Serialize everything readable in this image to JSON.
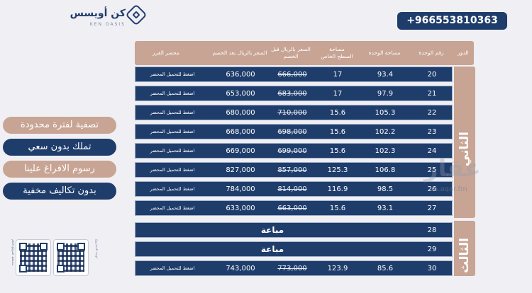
{
  "brand": {
    "name": "كن أويسس",
    "sub": "KEN OASIS"
  },
  "phone": "+966553810363",
  "promos": [
    "تصفية لفترة محدودة",
    "تملك بدون سعي",
    "رسوم الافراغ علينا",
    "بدون تكاليف مخفية"
  ],
  "qr_captions": [
    "مخطط الموقع العام",
    "لوحة المشروع"
  ],
  "headers": {
    "floor": "الدور",
    "unit_no": "رقم الوحدة",
    "unit_area": "مساحة الوحدة",
    "private_roof": "مساحة السطح الخاص",
    "price_before": "السعر بالريال قبل الخصم",
    "price_after": "السعر بالريال بعد الخصم",
    "sort_report": "محضر الفرز"
  },
  "floors": [
    {
      "label": "الثاني"
    },
    {
      "label": "الثالث"
    }
  ],
  "sold_label": "مباعة",
  "download_label": "اضغط للتحميل المحضر",
  "rows": [
    {
      "unit": "20",
      "area": "93.4",
      "roof": "17",
      "before": "666,000",
      "after": "636,000"
    },
    {
      "unit": "21",
      "area": "97.9",
      "roof": "17",
      "before": "683,000",
      "after": "653,000"
    },
    {
      "unit": "22",
      "area": "105.3",
      "roof": "15.6",
      "before": "710,000",
      "after": "680,000"
    },
    {
      "unit": "23",
      "area": "102.2",
      "roof": "15.6",
      "before": "698,000",
      "after": "668,000"
    },
    {
      "unit": "24",
      "area": "102.3",
      "roof": "15.6",
      "before": "699,000",
      "after": "669,000"
    },
    {
      "unit": "25",
      "area": "106.8",
      "roof": "125.3",
      "before": "857,000",
      "after": "827,000"
    },
    {
      "unit": "26",
      "area": "98.5",
      "roof": "116.9",
      "before": "814,000",
      "after": "784,000"
    },
    {
      "unit": "27",
      "area": "93.1",
      "roof": "15.6",
      "before": "663,000",
      "after": "633,000"
    },
    {
      "unit": "28",
      "sold": true
    },
    {
      "unit": "29",
      "sold": true
    },
    {
      "unit": "30",
      "area": "85.6",
      "roof": "123.9",
      "before": "773,000",
      "after": "743,000"
    }
  ],
  "watermark": {
    "text": "عقار",
    "domain": "sa.aqar.fm"
  }
}
